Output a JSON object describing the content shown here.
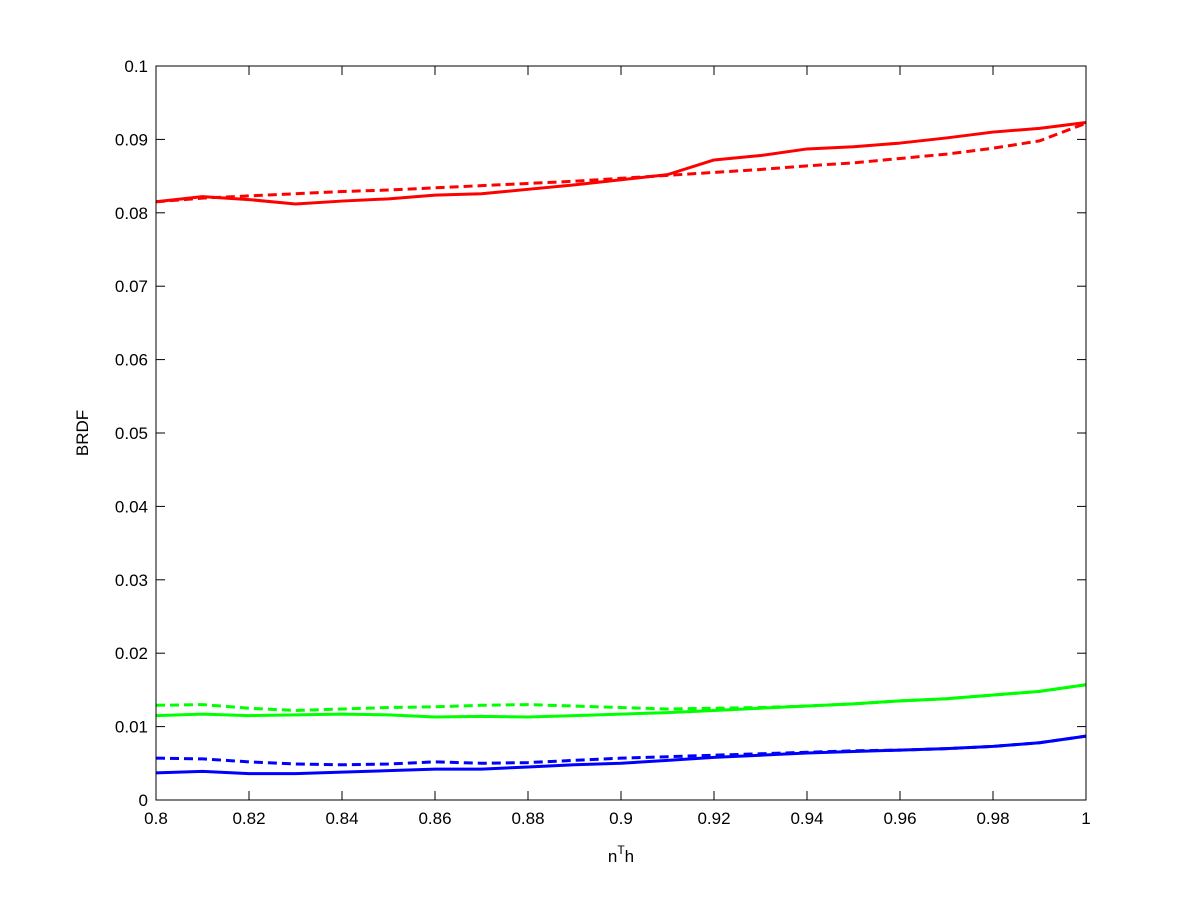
{
  "chart_data": {
    "type": "line",
    "xlabel_parts": [
      "n",
      "T",
      "h"
    ],
    "ylabel": "BRDF",
    "x": [
      0.8,
      0.81,
      0.82,
      0.83,
      0.84,
      0.85,
      0.86,
      0.87,
      0.88,
      0.89,
      0.9,
      0.91,
      0.92,
      0.93,
      0.94,
      0.95,
      0.96,
      0.97,
      0.98,
      0.99,
      1.0
    ],
    "series": [
      {
        "color": "#ff0000",
        "line_style": "solid",
        "values": [
          0.0815,
          0.0822,
          0.0818,
          0.0812,
          0.0816,
          0.0819,
          0.0824,
          0.0826,
          0.0832,
          0.0838,
          0.0845,
          0.0852,
          0.0872,
          0.0878,
          0.0887,
          0.089,
          0.0895,
          0.0902,
          0.091,
          0.0915,
          0.0923
        ]
      },
      {
        "color": "#ff0000",
        "line_style": "dashed",
        "values": [
          0.0815,
          0.082,
          0.0823,
          0.0826,
          0.0829,
          0.0831,
          0.0834,
          0.0837,
          0.084,
          0.0843,
          0.0847,
          0.0851,
          0.0855,
          0.0859,
          0.0864,
          0.0868,
          0.0874,
          0.088,
          0.0888,
          0.0898,
          0.0922
        ]
      },
      {
        "color": "#00ff00",
        "line_style": "solid",
        "values": [
          0.0115,
          0.0117,
          0.0115,
          0.0116,
          0.0117,
          0.0116,
          0.0113,
          0.0114,
          0.0113,
          0.0115,
          0.0117,
          0.0119,
          0.0122,
          0.0125,
          0.0128,
          0.0131,
          0.0135,
          0.0138,
          0.0143,
          0.0148,
          0.0157
        ]
      },
      {
        "color": "#00ff00",
        "line_style": "dashed",
        "values": [
          0.0129,
          0.013,
          0.0125,
          0.0122,
          0.0124,
          0.0126,
          0.0127,
          0.0129,
          0.013,
          0.0128,
          0.0126,
          0.0124,
          0.0125,
          0.0126,
          0.0128,
          0.0131,
          0.0135,
          0.0138,
          0.0143,
          0.0148,
          0.0157
        ]
      },
      {
        "color": "#0000ff",
        "line_style": "solid",
        "values": [
          0.0037,
          0.0039,
          0.0036,
          0.0036,
          0.0038,
          0.004,
          0.0042,
          0.0042,
          0.0045,
          0.0048,
          0.005,
          0.0054,
          0.0058,
          0.0061,
          0.0064,
          0.0066,
          0.0068,
          0.007,
          0.0073,
          0.0078,
          0.0087
        ]
      },
      {
        "color": "#0000ff",
        "line_style": "dashed",
        "values": [
          0.0057,
          0.0056,
          0.0052,
          0.0049,
          0.0048,
          0.0049,
          0.0052,
          0.005,
          0.0051,
          0.0054,
          0.0057,
          0.0059,
          0.0061,
          0.0063,
          0.0065,
          0.0067,
          0.0068,
          0.007,
          0.0073,
          0.0078,
          0.0087
        ]
      }
    ],
    "xlim": [
      0.8,
      1
    ],
    "xticks": [
      0.8,
      0.82,
      0.84,
      0.86,
      0.88,
      0.9,
      0.92,
      0.94,
      0.96,
      0.98,
      1
    ],
    "ylim": [
      0,
      0.1
    ],
    "yticks": [
      0,
      0.01,
      0.02,
      0.03,
      0.04,
      0.05,
      0.06,
      0.07,
      0.08,
      0.09,
      0.1
    ],
    "grid": false
  }
}
